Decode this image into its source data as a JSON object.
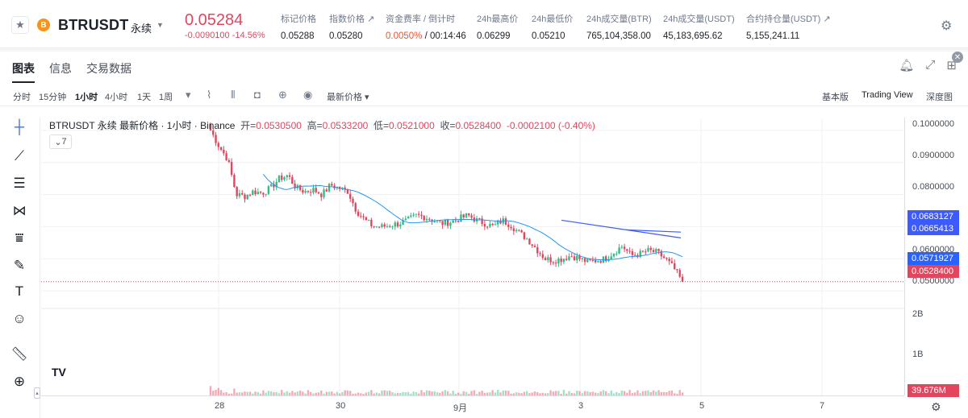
{
  "header": {
    "star_icon": "star-icon",
    "coin_icon": "btc-coin-icon",
    "symbol": "BTRUSDT",
    "contract_type": "永续",
    "last_price": "0.05284",
    "change_abs": "-0.0090100",
    "change_pct": "-14.56%",
    "stats": [
      {
        "label": "标记价格",
        "value": "0.05288"
      },
      {
        "label": "指数价格 ↗",
        "value": "0.05280"
      },
      {
        "label": "资金费率 / 倒计时",
        "value_highlight": "0.0050%",
        "value": " / 00:14:46"
      },
      {
        "label": "24h最高价",
        "value": "0.06299"
      },
      {
        "label": "24h最低价",
        "value": "0.05210"
      },
      {
        "label": "24h成交量(BTR)",
        "value": "765,104,358.00"
      },
      {
        "label": "24h成交量(USDT)",
        "value": "45,183,695.62"
      },
      {
        "label": "合约持仓量(USDT) ↗",
        "value": "5,155,241.11"
      }
    ],
    "colors": {
      "down": "#e2465f",
      "up": "#2ebd85",
      "funding": "#f0502e"
    }
  },
  "tabs": [
    "图表",
    "信息",
    "交易数据"
  ],
  "active_tab": "图表",
  "toolbar": {
    "timeframes": [
      "分时",
      "15分钟",
      "1小时",
      "4小时",
      "1天",
      "1周"
    ],
    "active_timeframe": "1小时",
    "price_type": "最新价格",
    "views": [
      "基本版",
      "Trading View",
      "深度图"
    ],
    "active_view": "Trading View"
  },
  "legend": {
    "title": "BTRUSDT 永续 最新价格 · 1小时 · Binance",
    "open_label": "开=",
    "open": "0.0530500",
    "high_label": "高=",
    "high": "0.0533200",
    "low_label": "低=",
    "low": "0.0521000",
    "close_label": "收=",
    "close": "0.0528400",
    "change": "-0.0002100 (-0.40%)",
    "indicator_count": "7"
  },
  "y_axis": {
    "labels": [
      "0.1000000",
      "0.0900000",
      "0.0800000",
      "0.0600000",
      "0.0500000",
      "2B",
      "1B"
    ],
    "tags": [
      {
        "value": "0.0683127",
        "color": "#3d5afe"
      },
      {
        "value": "0.0665413",
        "color": "#3d5afe"
      },
      {
        "value": "0.0571927",
        "color": "#2962ff"
      },
      {
        "value": "0.0528400",
        "color": "#e2465f"
      },
      {
        "value": "39.676M",
        "color": "#e2465f"
      }
    ]
  },
  "x_axis": {
    "labels": [
      "28",
      "30",
      "9月",
      "3",
      "5",
      "7"
    ]
  },
  "chart_data": {
    "type": "candlestick",
    "symbol": "BTRUSDT",
    "interval": "1h",
    "price_range": [
      0.045,
      0.104
    ],
    "approx_close_series": [
      0.1,
      0.095,
      0.091,
      0.08,
      0.0795,
      0.081,
      0.0805,
      0.082,
      0.085,
      0.086,
      0.082,
      0.081,
      0.0815,
      0.08,
      0.083,
      0.082,
      0.081,
      0.075,
      0.072,
      0.07,
      0.07,
      0.0705,
      0.071,
      0.072,
      0.0735,
      0.073,
      0.072,
      0.071,
      0.0715,
      0.0725,
      0.0735,
      0.072,
      0.071,
      0.07,
      0.072,
      0.0705,
      0.068,
      0.066,
      0.063,
      0.06,
      0.0595,
      0.06,
      0.061,
      0.06,
      0.059,
      0.0595,
      0.06,
      0.062,
      0.064,
      0.061,
      0.0615,
      0.0625,
      0.062,
      0.06,
      0.057,
      0.0528
    ],
    "ma_lines": [
      {
        "name": "MA",
        "color": "#2196f3"
      },
      {
        "name": "MA-long",
        "color": "#3d5afe"
      },
      {
        "name": "MA-longer",
        "color": "#3d5afe"
      }
    ]
  }
}
